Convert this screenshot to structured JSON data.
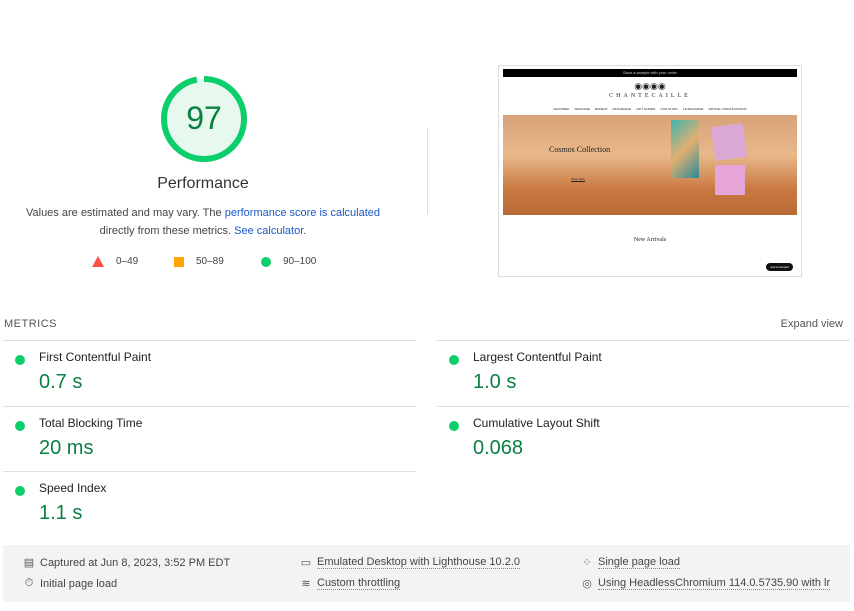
{
  "gauge": {
    "score": "97",
    "label": "Performance",
    "color": "#0cce6b",
    "fraction": 0.97
  },
  "description": {
    "prefix": "Values are estimated and may vary. The ",
    "link1": "performance score is calculated",
    "middle": " directly from these metrics. ",
    "link2": "See calculator",
    "suffix": "."
  },
  "legend": [
    {
      "shape": "triangle",
      "color": "#ff4e42",
      "label": "0–49"
    },
    {
      "shape": "square",
      "color": "#ffa400",
      "label": "50–89"
    },
    {
      "shape": "circle",
      "color": "#0cce6b",
      "label": "90–100"
    }
  ],
  "screenshot": {
    "banner": "Save a sample with your order",
    "brand": "CHANTECAILLE",
    "nav": [
      "FEATURED",
      "SKINCARE",
      "MAKEUP",
      "FRAGRANCE",
      "GIFT GUIDES",
      "OUR STORY",
      "LE MAGAZINE",
      "VIRTUAL CONSULTATIONS"
    ],
    "hero_title": "Cosmos Collection",
    "hero_cta": "Shop Now",
    "section": "New Arrivals",
    "chat": "Ask an Expert"
  },
  "metrics": {
    "label": "METRICS",
    "expand": "Expand view",
    "items": [
      {
        "name": "First Contentful Paint",
        "value": "0.7 s"
      },
      {
        "name": "Largest Contentful Paint",
        "value": "1.0 s"
      },
      {
        "name": "Total Blocking Time",
        "value": "20 ms"
      },
      {
        "name": "Cumulative Layout Shift",
        "value": "0.068"
      },
      {
        "name": "Speed Index",
        "value": "1.1 s"
      }
    ]
  },
  "footer": {
    "captured": "Captured at Jun 8, 2023, 3:52 PM EDT",
    "initial": "Initial page load",
    "emulated": "Emulated Desktop with Lighthouse 10.2.0",
    "throttling": "Custom throttling",
    "single": "Single page load",
    "browser": "Using HeadlessChromium 114.0.5735.90 with lr"
  }
}
